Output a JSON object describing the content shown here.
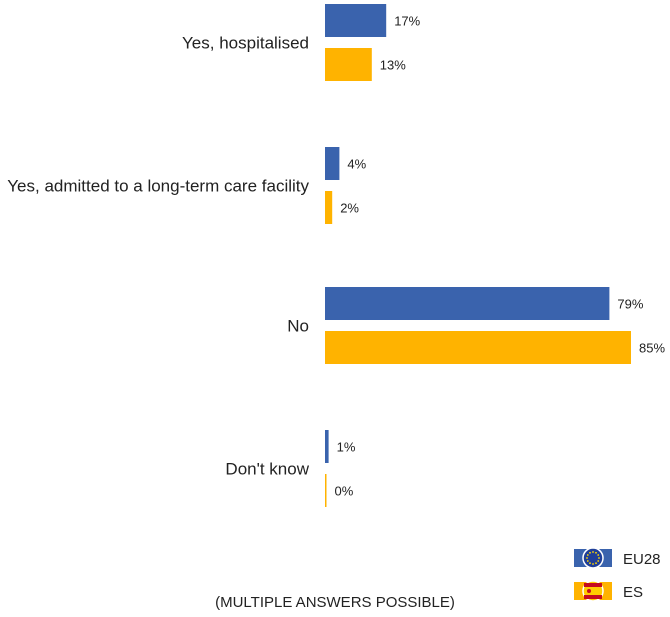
{
  "chart_data": {
    "type": "bar",
    "orientation": "horizontal",
    "categories": [
      "Yes, hospitalised",
      "Yes, admitted to a long-term care facility",
      "No",
      "Don't know"
    ],
    "series": [
      {
        "name": "EU28",
        "values": [
          17,
          4,
          79,
          1
        ],
        "color": "#3A63AD",
        "icon": "eu-flag-icon"
      },
      {
        "name": "ES",
        "values": [
          13,
          2,
          85,
          0
        ],
        "color": "#FFB300",
        "icon": "spain-flag-icon"
      }
    ],
    "value_suffix": "%",
    "xlim": [
      0,
      85
    ],
    "grid": false,
    "legend_position": "bottom-right"
  },
  "footnote": "(MULTIPLE ANSWERS POSSIBLE)"
}
